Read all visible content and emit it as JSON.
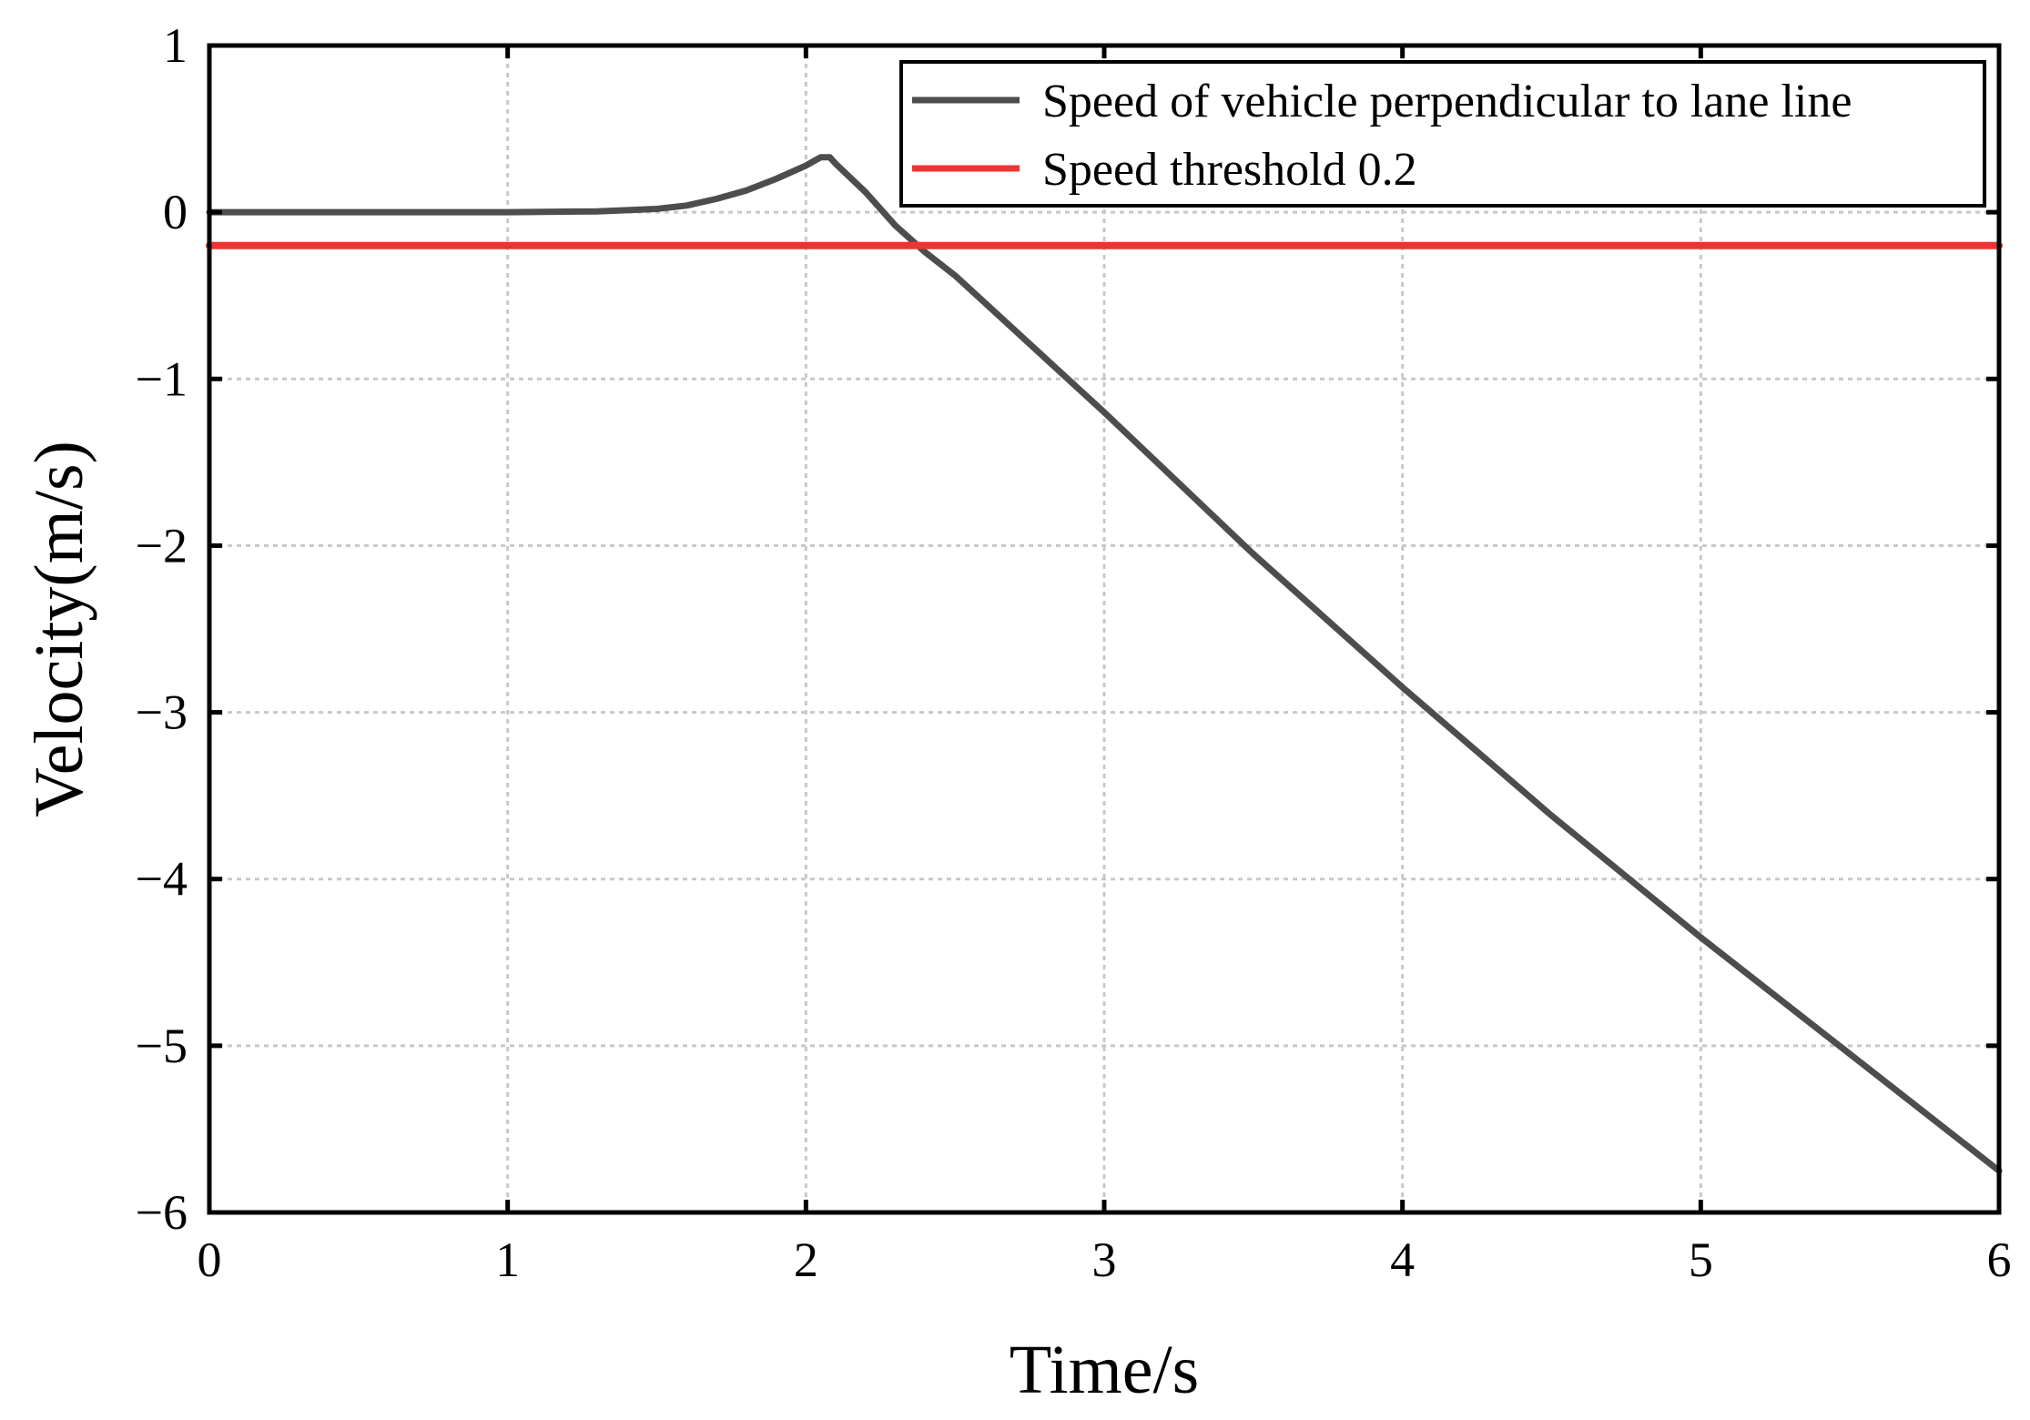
{
  "chart_data": {
    "type": "line",
    "title": "",
    "xlabel": "Time/s",
    "ylabel": "Velocity(m/s)",
    "xlim": [
      0,
      6
    ],
    "ylim": [
      -6,
      1
    ],
    "x_ticks": [
      0,
      1,
      2,
      3,
      4,
      5,
      6
    ],
    "y_ticks": [
      1,
      0,
      -1,
      -2,
      -3,
      -4,
      -5,
      -6
    ],
    "x_tick_labels": [
      "0",
      "1",
      "2",
      "3",
      "4",
      "5",
      "6"
    ],
    "y_tick_labels": [
      "1",
      "0",
      "−1",
      "−2",
      "−3",
      "−4",
      "−5",
      "−6"
    ],
    "grid": true,
    "legend_position": "top-right",
    "series": [
      {
        "name": "Speed of vehicle perpendicular to lane line",
        "color": "#4d4d4d",
        "x": [
          0,
          0.5,
          1.0,
          1.3,
          1.5,
          1.6,
          1.7,
          1.8,
          1.9,
          2.0,
          2.05,
          2.08,
          2.1,
          2.2,
          2.3,
          2.4,
          2.5,
          3.0,
          3.5,
          4.0,
          4.5,
          5.0,
          5.5,
          6.0
        ],
        "y": [
          0,
          0,
          0,
          0.005,
          0.02,
          0.04,
          0.08,
          0.13,
          0.2,
          0.28,
          0.33,
          0.33,
          0.29,
          0.12,
          -0.08,
          -0.24,
          -0.38,
          -1.2,
          -2.05,
          -2.85,
          -3.62,
          -4.35,
          -5.05,
          -5.75
        ]
      },
      {
        "name": "Speed threshold 0.2",
        "color": "#f03232",
        "x": [
          0,
          6
        ],
        "y": [
          -0.2,
          -0.2
        ]
      }
    ]
  }
}
